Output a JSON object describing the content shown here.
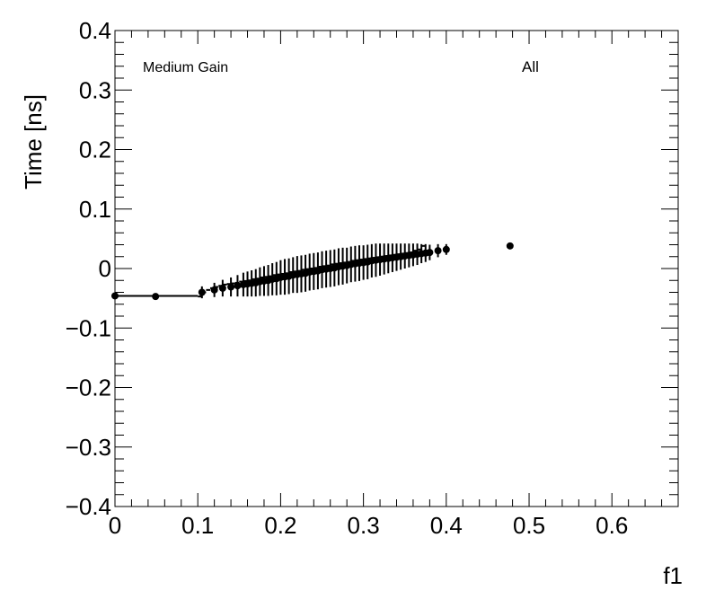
{
  "chart_data": {
    "type": "scatter",
    "title": "",
    "xlabel": "f1",
    "ylabel": "Time [ns]",
    "xlim": [
      0,
      0.68
    ],
    "ylim": [
      -0.4,
      0.4
    ],
    "grid": false,
    "legend": "none",
    "annotations": {
      "left": "Medium Gain",
      "right": "All"
    },
    "x_ticks": [
      {
        "value": 0,
        "label": "0"
      },
      {
        "value": 0.1,
        "label": "0.1"
      },
      {
        "value": 0.2,
        "label": "0.2"
      },
      {
        "value": 0.3,
        "label": "0.3"
      },
      {
        "value": 0.4,
        "label": "0.4"
      },
      {
        "value": 0.5,
        "label": "0.5"
      },
      {
        "value": 0.6,
        "label": "0.6"
      }
    ],
    "y_ticks": [
      {
        "value": -0.4,
        "label": "−0.4"
      },
      {
        "value": -0.3,
        "label": "−0.3"
      },
      {
        "value": -0.2,
        "label": "−0.2"
      },
      {
        "value": -0.1,
        "label": "−0.1"
      },
      {
        "value": 0,
        "label": "0"
      },
      {
        "value": 0.1,
        "label": "0.1"
      },
      {
        "value": 0.2,
        "label": "0.2"
      },
      {
        "value": 0.3,
        "label": "0.3"
      },
      {
        "value": 0.4,
        "label": "0.4"
      }
    ],
    "bins": {
      "x_low": [
        0,
        0.1,
        0.105,
        0.11,
        0.115,
        0.12,
        0.125,
        0.13,
        0.135,
        0.14,
        0.145,
        0.15,
        0.155,
        0.16,
        0.165,
        0.17,
        0.175,
        0.18,
        0.185,
        0.19,
        0.195,
        0.2,
        0.205,
        0.21,
        0.215,
        0.22,
        0.225,
        0.23,
        0.235,
        0.24,
        0.245,
        0.25,
        0.255,
        0.26,
        0.265,
        0.27,
        0.275,
        0.28,
        0.285,
        0.29,
        0.295,
        0.3,
        0.305,
        0.31,
        0.315,
        0.32,
        0.325,
        0.33,
        0.335,
        0.34,
        0.345,
        0.35,
        0.355,
        0.36,
        0.365,
        0.37,
        0.375,
        0.38,
        0.385,
        0.39,
        0.395,
        0.405
      ],
      "x_high": [
        0.1,
        0.105,
        0.11,
        0.115,
        0.12,
        0.125,
        0.13,
        0.135,
        0.14,
        0.145,
        0.15,
        0.155,
        0.16,
        0.165,
        0.17,
        0.175,
        0.18,
        0.185,
        0.19,
        0.195,
        0.2,
        0.205,
        0.21,
        0.215,
        0.22,
        0.225,
        0.23,
        0.235,
        0.24,
        0.245,
        0.25,
        0.255,
        0.26,
        0.265,
        0.27,
        0.275,
        0.28,
        0.285,
        0.29,
        0.295,
        0.3,
        0.305,
        0.31,
        0.315,
        0.32,
        0.325,
        0.33,
        0.335,
        0.34,
        0.345,
        0.35,
        0.355,
        0.36,
        0.365,
        0.37,
        0.375,
        0.38,
        0.385,
        0.39,
        0.395,
        0.405,
        0.55
      ],
      "x": [
        0,
        0.049,
        0.105,
        0.12,
        0.13,
        0.14,
        0.148,
        0.155,
        0.16,
        0.165,
        0.17,
        0.175,
        0.18,
        0.185,
        0.19,
        0.195,
        0.2,
        0.205,
        0.21,
        0.215,
        0.22,
        0.225,
        0.23,
        0.235,
        0.24,
        0.245,
        0.25,
        0.255,
        0.26,
        0.265,
        0.27,
        0.275,
        0.28,
        0.285,
        0.29,
        0.295,
        0.3,
        0.305,
        0.31,
        0.315,
        0.32,
        0.325,
        0.33,
        0.335,
        0.34,
        0.345,
        0.35,
        0.355,
        0.36,
        0.365,
        0.37,
        0.375,
        0.38,
        0.39,
        0.4,
        0.477
      ],
      "y": [
        -0.046,
        -0.047,
        -0.04,
        -0.036,
        -0.033,
        -0.031,
        -0.029,
        -0.027,
        -0.026,
        -0.025,
        -0.024,
        -0.022,
        -0.021,
        -0.02,
        -0.018,
        -0.017,
        -0.015,
        -0.014,
        -0.013,
        -0.011,
        -0.01,
        -0.009,
        -0.008,
        -0.006,
        -0.005,
        -0.004,
        -0.002,
        -0.001,
        0,
        0.001,
        0.003,
        0.004,
        0.005,
        0.007,
        0.008,
        0.009,
        0.01,
        0.011,
        0.013,
        0.014,
        0.015,
        0.016,
        0.017,
        0.018,
        0.019,
        0.02,
        0.021,
        0.022,
        0.023,
        0.024,
        0.025,
        0.026,
        0.027,
        0.03,
        0.032,
        0.038
      ],
      "yerr": [
        0.003,
        0.003,
        0.01,
        0.012,
        0.014,
        0.016,
        0.018,
        0.02,
        0.021,
        0.022,
        0.023,
        0.024,
        0.025,
        0.026,
        0.027,
        0.028,
        0.029,
        0.03,
        0.03,
        0.03,
        0.031,
        0.031,
        0.031,
        0.031,
        0.031,
        0.031,
        0.031,
        0.031,
        0.031,
        0.031,
        0.031,
        0.031,
        0.03,
        0.03,
        0.03,
        0.03,
        0.029,
        0.029,
        0.028,
        0.028,
        0.027,
        0.026,
        0.025,
        0.024,
        0.023,
        0.022,
        0.021,
        0.02,
        0.019,
        0.018,
        0.016,
        0.015,
        0.013,
        0.011,
        0.009,
        0.004
      ]
    }
  }
}
